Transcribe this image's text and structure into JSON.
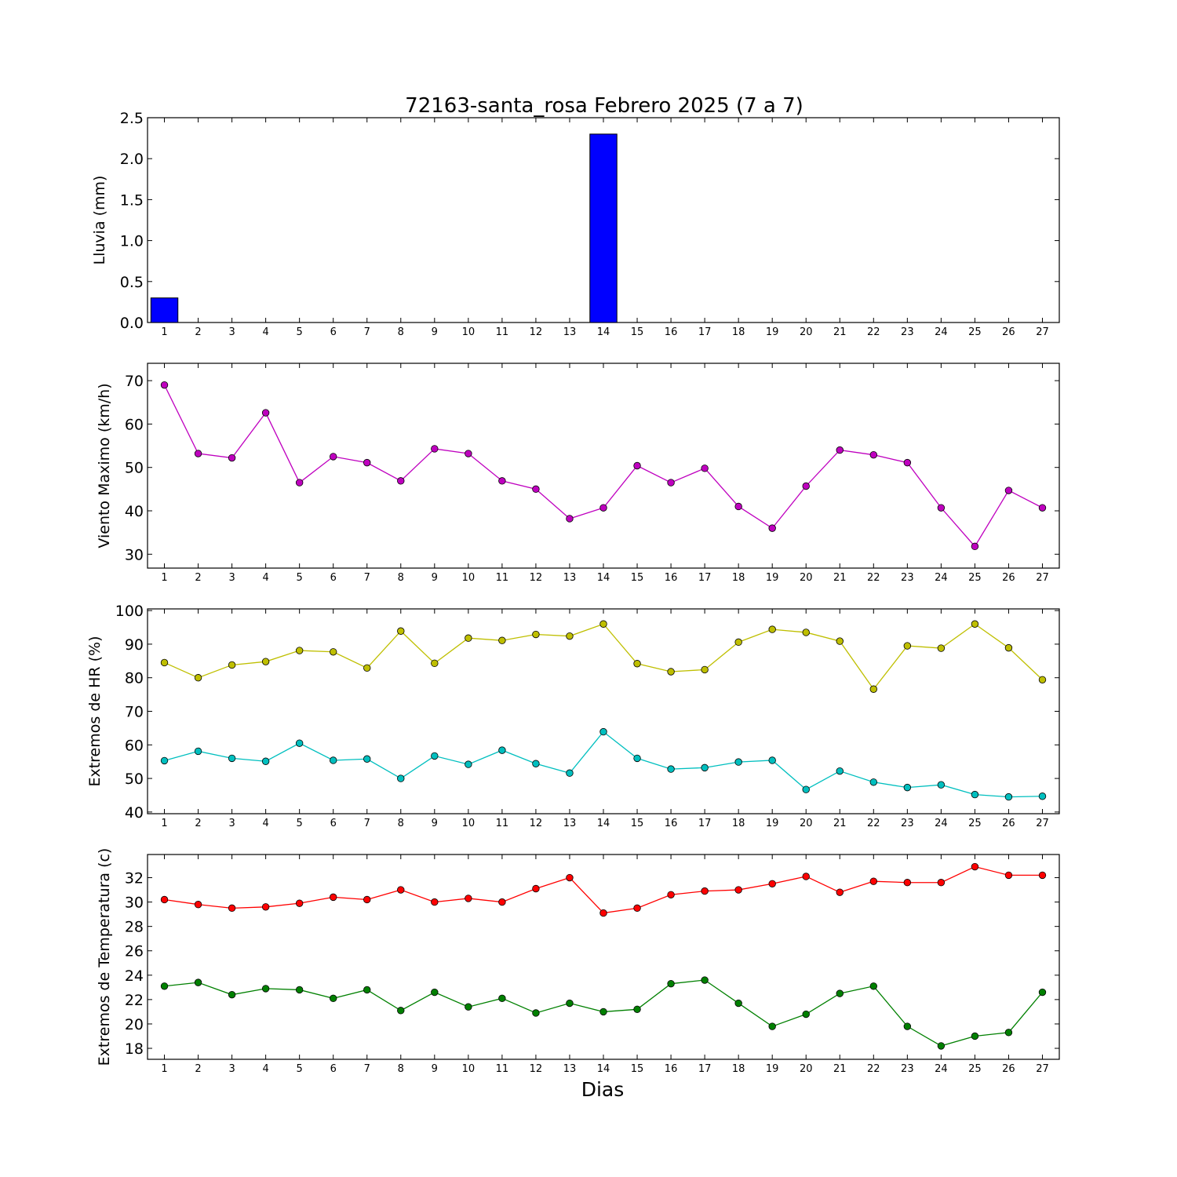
{
  "title": "72163-santa_rosa Febrero 2025  (7 a 7)",
  "xlabel": "Dias",
  "days": [
    "1",
    "2",
    "3",
    "4",
    "5",
    "6",
    "7",
    "8",
    "9",
    "10",
    "11",
    "12",
    "13",
    "14",
    "15",
    "16",
    "17",
    "18",
    "19",
    "20",
    "21",
    "22",
    "23",
    "24",
    "25",
    "26",
    "27"
  ],
  "colors": {
    "rain": "#0000ff",
    "wind": "#bf00bf",
    "hr_max": "#bfbf00",
    "hr_min": "#00bfbf",
    "temp_max": "#ff0000",
    "temp_min": "#008000"
  },
  "chart_data": [
    {
      "type": "bar",
      "ylabel": "Lluvia (mm)",
      "ylim": [
        0,
        2.5
      ],
      "yticks": [
        0.0,
        0.5,
        1.0,
        1.5,
        2.0,
        2.5
      ],
      "ytick_labels": [
        "0.0",
        "0.5",
        "1.0",
        "1.5",
        "2.0",
        "2.5"
      ],
      "x": [
        1,
        2,
        3,
        4,
        5,
        6,
        7,
        8,
        9,
        10,
        11,
        12,
        13,
        14,
        15,
        16,
        17,
        18,
        19,
        20,
        21,
        22,
        23,
        24,
        25,
        26,
        27
      ],
      "values": [
        0.3,
        0,
        0,
        0,
        0,
        0,
        0,
        0,
        0,
        0,
        0,
        0,
        0,
        2.3,
        0,
        0,
        0,
        0,
        0,
        0,
        0,
        0,
        0,
        0,
        0,
        0,
        0
      ]
    },
    {
      "type": "line",
      "ylabel": "Viento Maximo (km/h)",
      "ylim": [
        26.8,
        74.0
      ],
      "yticks": [
        30,
        40,
        50,
        60,
        70
      ],
      "ytick_labels": [
        "30",
        "40",
        "50",
        "60",
        "70"
      ],
      "x": [
        1,
        2,
        3,
        4,
        5,
        6,
        7,
        8,
        9,
        10,
        11,
        12,
        13,
        14,
        15,
        16,
        17,
        18,
        19,
        20,
        21,
        22,
        23,
        24,
        25,
        26,
        27
      ],
      "series": [
        {
          "values": [
            69.0,
            53.2,
            52.2,
            62.6,
            46.5,
            52.5,
            51.1,
            46.9,
            54.3,
            53.2,
            46.9,
            45.0,
            38.2,
            40.7,
            50.4,
            46.5,
            49.8,
            41.0,
            36.0,
            45.7,
            54.0,
            52.9,
            51.1,
            40.7,
            31.8,
            44.7,
            40.7
          ]
        }
      ]
    },
    {
      "type": "line",
      "ylabel": "Extremos de HR (%)",
      "ylim": [
        39.5,
        100.5
      ],
      "yticks": [
        40,
        50,
        60,
        70,
        80,
        90,
        100
      ],
      "ytick_labels": [
        "40",
        "50",
        "60",
        "70",
        "80",
        "90",
        "100"
      ],
      "x": [
        1,
        2,
        3,
        4,
        5,
        6,
        7,
        8,
        9,
        10,
        11,
        12,
        13,
        14,
        15,
        16,
        17,
        18,
        19,
        20,
        21,
        22,
        23,
        24,
        25,
        26,
        27
      ],
      "series": [
        {
          "values": [
            84.5,
            80.0,
            83.8,
            84.8,
            88.1,
            87.7,
            82.9,
            93.9,
            84.3,
            91.8,
            91.1,
            92.9,
            92.4,
            96.0,
            84.2,
            81.8,
            82.4,
            90.6,
            94.4,
            93.5,
            90.9,
            76.6,
            89.5,
            88.8,
            96.0,
            88.9,
            79.4
          ]
        },
        {
          "values": [
            55.3,
            58.1,
            56.0,
            55.1,
            60.5,
            55.4,
            55.8,
            50.0,
            56.7,
            54.2,
            58.4,
            54.4,
            51.6,
            63.9,
            56.0,
            52.8,
            53.2,
            54.9,
            55.4,
            46.7,
            52.2,
            48.9,
            47.3,
            48.1,
            45.2,
            44.5,
            44.7
          ]
        }
      ]
    },
    {
      "type": "line",
      "ylabel": "Extremos de Temperatura (c)",
      "ylim": [
        17.1,
        33.9
      ],
      "yticks": [
        18,
        20,
        22,
        24,
        26,
        28,
        30,
        32
      ],
      "ytick_labels": [
        "18",
        "20",
        "22",
        "24",
        "26",
        "28",
        "30",
        "32"
      ],
      "x": [
        1,
        2,
        3,
        4,
        5,
        6,
        7,
        8,
        9,
        10,
        11,
        12,
        13,
        14,
        15,
        16,
        17,
        18,
        19,
        20,
        21,
        22,
        23,
        24,
        25,
        26,
        27
      ],
      "series": [
        {
          "values": [
            30.2,
            29.8,
            29.5,
            29.6,
            29.9,
            30.4,
            30.2,
            31.0,
            30.0,
            30.3,
            30.0,
            31.1,
            32.0,
            29.1,
            29.5,
            30.6,
            30.9,
            31.0,
            31.5,
            32.1,
            30.8,
            31.7,
            31.6,
            31.6,
            32.9,
            32.2,
            32.2
          ]
        },
        {
          "values": [
            23.1,
            23.4,
            22.4,
            22.9,
            22.8,
            22.1,
            22.8,
            21.1,
            22.6,
            21.4,
            22.1,
            20.9,
            21.7,
            21.0,
            21.2,
            23.3,
            23.6,
            21.7,
            19.8,
            20.8,
            22.5,
            23.1,
            19.8,
            18.2,
            19.0,
            19.3,
            22.6
          ]
        }
      ]
    }
  ]
}
